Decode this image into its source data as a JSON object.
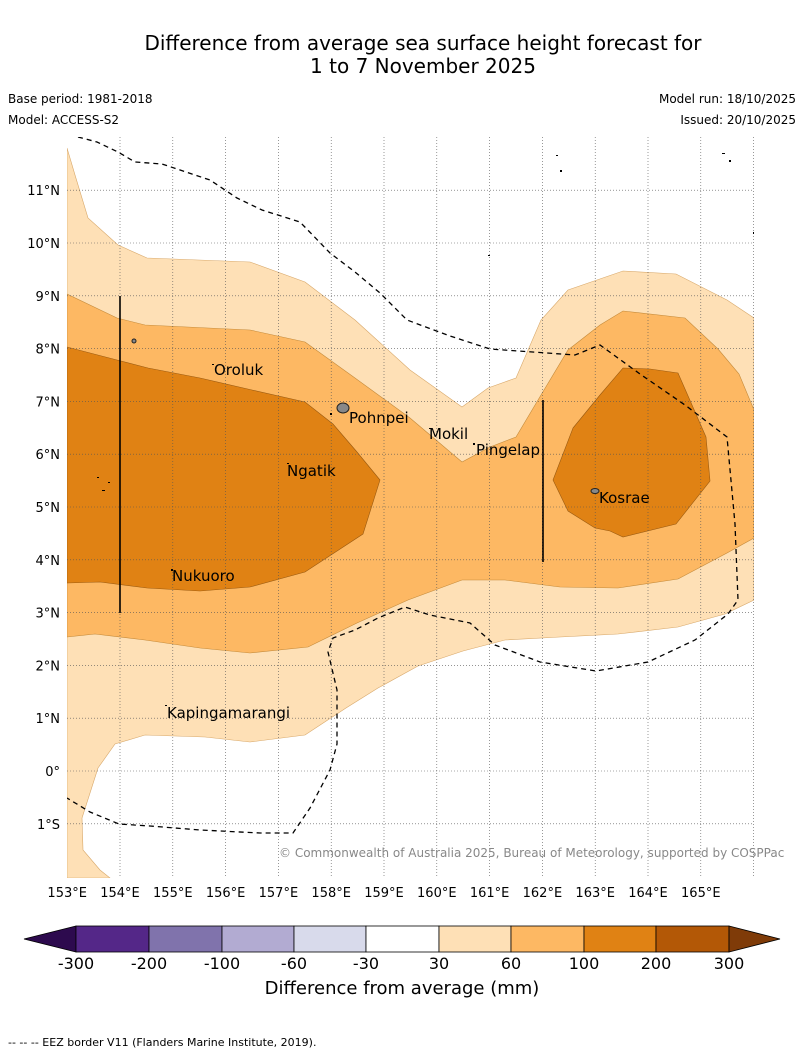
{
  "title": {
    "line1": "Difference from average sea surface height forecast for",
    "line2": "1 to 7 November 2025"
  },
  "meta": {
    "base_period": "Base period: 1981-2018",
    "model": "Model: ACCESS-S2",
    "model_run": "Model run: 18/10/2025",
    "issued": "Issued: 20/10/2025"
  },
  "map": {
    "lat_labels": [
      "11°N",
      "10°N",
      "9°N",
      "8°N",
      "7°N",
      "6°N",
      "5°N",
      "4°N",
      "3°N",
      "2°N",
      "1°N",
      "0°",
      "1°S"
    ],
    "lon_labels": [
      "153°E",
      "154°E",
      "155°E",
      "156°E",
      "157°E",
      "158°E",
      "159°E",
      "160°E",
      "161°E",
      "162°E",
      "163°E",
      "164°E",
      "165°E"
    ],
    "places": [
      "Oroluk",
      "Pohnpei",
      "Mokil",
      "Pingelap",
      "Ngatik",
      "Kosrae",
      "Nukuoro",
      "Kapingamarangi"
    ],
    "copyright": "© Commonwealth of Australia 2025, Bureau of Meteorology, supported by COSPPac"
  },
  "colorbar": {
    "ticks": [
      "-300",
      "-200",
      "-100",
      "-60",
      "-30",
      "30",
      "60",
      "100",
      "200",
      "300"
    ],
    "colors": {
      "below": "#2d0a4e",
      "c1": "#542788",
      "c2": "#8073ac",
      "c3": "#b2abd2",
      "c4": "#d8daeb",
      "c5": "#ffffff",
      "c6": "#fee0b6",
      "c7": "#fdb863",
      "c8": "#e08214",
      "c9": "#b35806",
      "above": "#7f3b08"
    },
    "label": "Difference from average (mm)"
  },
  "footer": {
    "eez_note": "--  --  -- EEZ border V11 (Flanders Marine Institute, 2019)."
  }
}
